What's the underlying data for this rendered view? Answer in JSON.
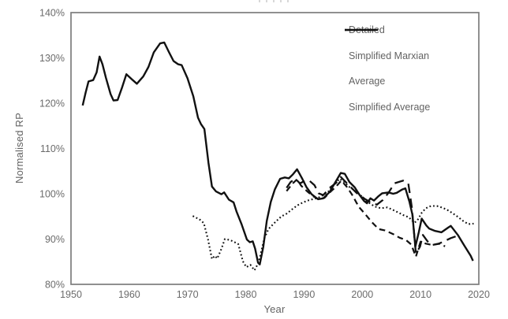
{
  "chart_data": {
    "type": "line",
    "title": "",
    "xlabel": "Year",
    "ylabel": "Normalised RP",
    "xlim": [
      1950,
      2020
    ],
    "ylim": [
      80,
      140
    ],
    "x_ticks": [
      1950,
      1960,
      1970,
      1980,
      1990,
      2000,
      2010,
      2020
    ],
    "y_ticks": [
      80,
      90,
      100,
      110,
      120,
      130,
      140
    ],
    "y_tick_suffix": "%",
    "grid": false,
    "legend_position": "inside-top-right",
    "line_color": "#111111",
    "axis_color": "#7d7d7d",
    "tick_label_color": "#6b6b6b",
    "series": [
      {
        "name": "Detailed",
        "line_style": "long-dash",
        "color": "#111111",
        "points": [
          [
            1987,
            101.3
          ],
          [
            1987.7,
            102.6
          ],
          [
            1988.5,
            103.3
          ],
          [
            1989.3,
            102.3
          ],
          [
            1990.2,
            102.9
          ],
          [
            1991,
            102.8
          ],
          [
            1991.8,
            101.9
          ],
          [
            1992.5,
            100.1
          ],
          [
            1993.3,
            99.7
          ],
          [
            1994.5,
            101.4
          ],
          [
            1995.5,
            102.4
          ],
          [
            1996.3,
            103.7
          ],
          [
            1997.6,
            102
          ],
          [
            1999,
            100.2
          ],
          [
            2000.5,
            98.8
          ],
          [
            2001.6,
            98
          ],
          [
            2002.5,
            97.6
          ],
          [
            2003.5,
            98.6
          ],
          [
            2004.5,
            100.2
          ],
          [
            2005.5,
            102.3
          ],
          [
            2007,
            102.9
          ],
          [
            2007.9,
            102.3
          ],
          [
            2008.5,
            97
          ],
          [
            2009.2,
            86.8
          ],
          [
            2009.9,
            88.3
          ],
          [
            2010.4,
            90.9
          ],
          [
            2011.2,
            89.5
          ],
          [
            2012,
            88.7
          ],
          [
            2013,
            88.9
          ],
          [
            2014.2,
            89.6
          ],
          [
            2015.2,
            90.2
          ],
          [
            2016.3,
            90.7
          ]
        ]
      },
      {
        "name": "Simplified Marxian",
        "line_style": "dash",
        "color": "#111111",
        "points": [
          [
            1987,
            100.6
          ],
          [
            1988,
            102.2
          ],
          [
            1988.8,
            103.2
          ],
          [
            1989.5,
            101.8
          ],
          [
            1990.5,
            100.6
          ],
          [
            1991.5,
            99.5
          ],
          [
            1992.5,
            98.8
          ],
          [
            1993.5,
            99.1
          ],
          [
            1994.5,
            100.4
          ],
          [
            1995.5,
            101.6
          ],
          [
            1996.4,
            102.9
          ],
          [
            1997.3,
            101.6
          ],
          [
            1998.2,
            99.9
          ],
          [
            1999.4,
            97.1
          ],
          [
            2000.5,
            95.5
          ],
          [
            2001.6,
            93.8
          ],
          [
            2002.8,
            92.2
          ],
          [
            2003.9,
            91.9
          ],
          [
            2005.3,
            91.1
          ],
          [
            2006.4,
            90.3
          ],
          [
            2007.5,
            89.8
          ],
          [
            2008.4,
            88.8
          ],
          [
            2009.2,
            86.1
          ],
          [
            2010,
            89.4
          ],
          [
            2010.9,
            89
          ],
          [
            2012,
            88.7
          ],
          [
            2013.1,
            89
          ],
          [
            2014.2,
            88.4
          ]
        ]
      },
      {
        "name": "Average",
        "line_style": "solid",
        "color": "#111111",
        "points": [
          [
            1952,
            119.5
          ],
          [
            1952.5,
            122.3
          ],
          [
            1953,
            124.8
          ],
          [
            1953.8,
            125.1
          ],
          [
            1954.4,
            126.8
          ],
          [
            1954.9,
            130.3
          ],
          [
            1955.4,
            128.6
          ],
          [
            1956,
            125.6
          ],
          [
            1956.8,
            122
          ],
          [
            1957.3,
            120.6
          ],
          [
            1958,
            120.7
          ],
          [
            1958.8,
            123.6
          ],
          [
            1959.5,
            126.4
          ],
          [
            1960.6,
            125.1
          ],
          [
            1961.3,
            124.3
          ],
          [
            1962.4,
            125.9
          ],
          [
            1963.3,
            128
          ],
          [
            1964.2,
            131.2
          ],
          [
            1965.3,
            133.2
          ],
          [
            1966,
            133.4
          ],
          [
            1966.8,
            131.3
          ],
          [
            1967.6,
            129.3
          ],
          [
            1968.4,
            128.6
          ],
          [
            1969,
            128.4
          ],
          [
            1970,
            125.5
          ],
          [
            1971,
            121.5
          ],
          [
            1971.8,
            116.8
          ],
          [
            1972.3,
            115.4
          ],
          [
            1972.9,
            114.3
          ],
          [
            1973.6,
            106.8
          ],
          [
            1974.2,
            101.6
          ],
          [
            1974.9,
            100.5
          ],
          [
            1975.8,
            99.9
          ],
          [
            1976.3,
            100.3
          ],
          [
            1977.1,
            98.7
          ],
          [
            1977.9,
            98.1
          ],
          [
            1978.4,
            96.1
          ],
          [
            1979.3,
            93.2
          ],
          [
            1980.2,
            89.9
          ],
          [
            1980.7,
            89.3
          ],
          [
            1981.2,
            89.5
          ],
          [
            1981.6,
            87.9
          ],
          [
            1982.1,
            84.8
          ],
          [
            1982.4,
            84.4
          ],
          [
            1983,
            88.2
          ],
          [
            1983.6,
            94
          ],
          [
            1984.3,
            98.2
          ],
          [
            1985,
            101
          ],
          [
            1985.9,
            103.3
          ],
          [
            1986.7,
            103.6
          ],
          [
            1987.4,
            103.4
          ],
          [
            1988.1,
            104.3
          ],
          [
            1988.8,
            105.4
          ],
          [
            1989.7,
            103.3
          ],
          [
            1990.4,
            101.5
          ],
          [
            1991.3,
            99.9
          ],
          [
            1992.4,
            98.8
          ],
          [
            1993.3,
            99
          ],
          [
            1994.4,
            100.4
          ],
          [
            1995.3,
            102.4
          ],
          [
            1996.3,
            104.6
          ],
          [
            1997,
            104.4
          ],
          [
            1997.8,
            102.6
          ],
          [
            1998.7,
            101.4
          ],
          [
            1999.5,
            99.8
          ],
          [
            2000.3,
            98.4
          ],
          [
            2000.8,
            97.9
          ],
          [
            2001.4,
            99
          ],
          [
            2002,
            98.5
          ],
          [
            2002.8,
            99.5
          ],
          [
            2003.4,
            100.1
          ],
          [
            2004.5,
            100.3
          ],
          [
            2005.3,
            100
          ],
          [
            2005.9,
            100.2
          ],
          [
            2006.8,
            100.9
          ],
          [
            2007.4,
            101.2
          ],
          [
            2008.1,
            98.2
          ],
          [
            2008.6,
            95.4
          ],
          [
            2009.1,
            88.3
          ],
          [
            2009.7,
            91.5
          ],
          [
            2010.2,
            94.5
          ],
          [
            2011,
            93
          ],
          [
            2011.5,
            92.3
          ],
          [
            2012.5,
            91.8
          ],
          [
            2013.6,
            91.5
          ],
          [
            2014.8,
            92.6
          ],
          [
            2015.2,
            92.9
          ],
          [
            2016.4,
            90.9
          ],
          [
            2017.5,
            88.6
          ],
          [
            2018.6,
            86.3
          ],
          [
            2019,
            85.2
          ]
        ]
      },
      {
        "name": "Simplified Average",
        "line_style": "dot",
        "color": "#111111",
        "points": [
          [
            1970.9,
            95.1
          ],
          [
            1971.5,
            94.7
          ],
          [
            1972.2,
            94.2
          ],
          [
            1972.8,
            93.5
          ],
          [
            1973.5,
            90
          ],
          [
            1974.2,
            85.6
          ],
          [
            1974.7,
            86.3
          ],
          [
            1975.1,
            85.7
          ],
          [
            1975.8,
            87.8
          ],
          [
            1976.4,
            90
          ],
          [
            1977.3,
            89.8
          ],
          [
            1978.1,
            89.3
          ],
          [
            1978.7,
            88.9
          ],
          [
            1979.5,
            85.1
          ],
          [
            1980.1,
            83.8
          ],
          [
            1980.8,
            84.3
          ],
          [
            1981.5,
            83.1
          ],
          [
            1982.2,
            84.8
          ],
          [
            1983.2,
            90.2
          ],
          [
            1983.9,
            92.2
          ],
          [
            1984.8,
            93.4
          ],
          [
            1986.1,
            95
          ],
          [
            1987,
            95.6
          ],
          [
            1987.9,
            96.5
          ],
          [
            1988.8,
            97.4
          ],
          [
            1989.7,
            98
          ],
          [
            1990.6,
            98.5
          ],
          [
            1991.5,
            98.8
          ],
          [
            1992.4,
            99.1
          ],
          [
            1993.3,
            99.7
          ],
          [
            1994.2,
            100.5
          ],
          [
            1995.3,
            102.2
          ],
          [
            1996.1,
            103.3
          ],
          [
            1996.9,
            102.6
          ],
          [
            1997.8,
            101.5
          ],
          [
            1999.2,
            100.3
          ],
          [
            2000.8,
            98.3
          ],
          [
            2002.1,
            97.2
          ],
          [
            2003.2,
            96.8
          ],
          [
            2004.3,
            97
          ],
          [
            2005.5,
            96.3
          ],
          [
            2006.3,
            95.8
          ],
          [
            2007,
            95.3
          ],
          [
            2008,
            94.8
          ],
          [
            2008.9,
            93.6
          ],
          [
            2009.4,
            94
          ],
          [
            2010.2,
            95.8
          ],
          [
            2010.9,
            96.8
          ],
          [
            2011.8,
            97.3
          ],
          [
            2012.8,
            97.3
          ],
          [
            2013.8,
            96.9
          ],
          [
            2014.8,
            96.3
          ],
          [
            2015.5,
            95.7
          ],
          [
            2016.4,
            94.9
          ],
          [
            2017.3,
            94
          ],
          [
            2018.2,
            93.3
          ],
          [
            2019.1,
            93.4
          ]
        ]
      }
    ]
  }
}
